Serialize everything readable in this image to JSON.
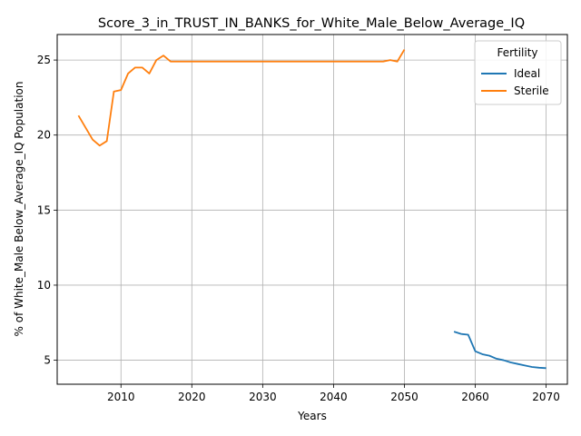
{
  "chart_data": {
    "type": "line",
    "title": "Score_3_in_TRUST_IN_BANKS_for_White_Male_Below_Average_IQ",
    "xlabel": "Years",
    "ylabel": "% of White_Male Below_Average_IQ Population",
    "xlim": [
      2001,
      2073
    ],
    "ylim": [
      3.4,
      26.7
    ],
    "xticks": [
      2010,
      2020,
      2030,
      2040,
      2050,
      2060,
      2070
    ],
    "yticks": [
      5,
      10,
      15,
      20,
      25
    ],
    "grid": true,
    "legend": {
      "title": "Fertility",
      "placement": "top-right"
    },
    "series": [
      {
        "name": "Ideal",
        "color": "#1f77b4",
        "x": [
          2057,
          2058,
          2059,
          2060,
          2061,
          2062,
          2063,
          2064,
          2065,
          2066,
          2067,
          2068,
          2069,
          2070
        ],
        "y": [
          6.9,
          6.75,
          6.7,
          5.6,
          5.4,
          5.3,
          5.1,
          5.0,
          4.85,
          4.75,
          4.65,
          4.55,
          4.5,
          4.47
        ]
      },
      {
        "name": "Sterile",
        "color": "#ff7f0e",
        "x": [
          2004,
          2005,
          2006,
          2007,
          2008,
          2009,
          2010,
          2011,
          2012,
          2013,
          2014,
          2015,
          2016,
          2017,
          2018,
          2019,
          2020,
          2025,
          2030,
          2035,
          2040,
          2045,
          2046,
          2047,
          2048,
          2049,
          2050
        ],
        "y": [
          21.3,
          20.5,
          19.7,
          19.3,
          19.6,
          22.9,
          23.0,
          24.1,
          24.5,
          24.5,
          24.1,
          25.0,
          25.3,
          24.9,
          24.9,
          24.9,
          24.9,
          24.9,
          24.9,
          24.9,
          24.9,
          24.9,
          24.9,
          24.9,
          25.0,
          24.9,
          25.7
        ]
      }
    ]
  }
}
